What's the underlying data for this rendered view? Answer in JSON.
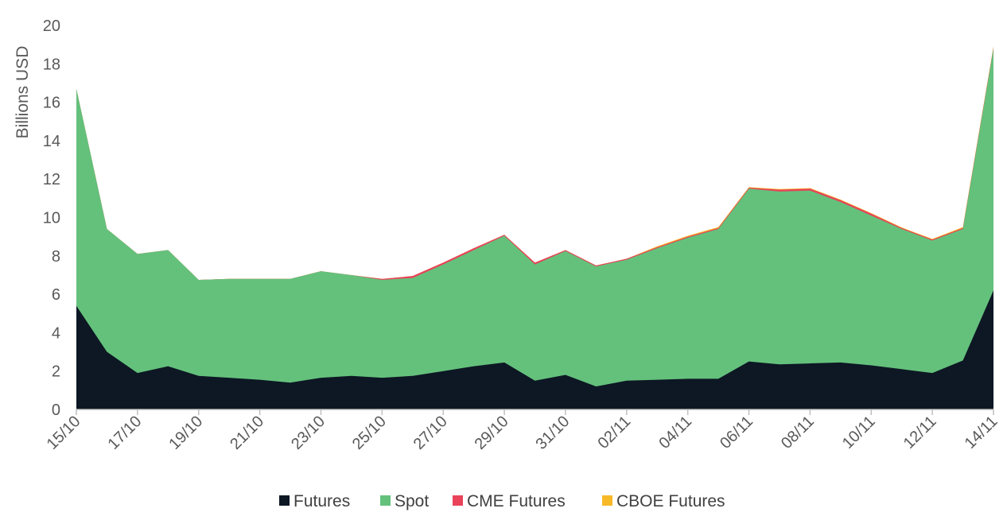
{
  "chart_data": {
    "type": "area",
    "stacked": true,
    "title": "",
    "xlabel": "",
    "ylabel": "Billions  USD",
    "ylim": [
      0,
      20
    ],
    "yticks": [
      0,
      2,
      4,
      6,
      8,
      10,
      12,
      14,
      16,
      18,
      20
    ],
    "grid": false,
    "legend_position": "bottom",
    "x": [
      "15/10",
      "16/10",
      "17/10",
      "18/10",
      "19/10",
      "20/10",
      "21/10",
      "22/10",
      "23/10",
      "24/10",
      "25/10",
      "26/10",
      "27/10",
      "28/10",
      "29/10",
      "30/10",
      "31/10",
      "01/11",
      "02/11",
      "03/11",
      "04/11",
      "05/11",
      "06/11",
      "07/11",
      "08/11",
      "09/11",
      "10/11",
      "11/11",
      "12/11",
      "13/11",
      "14/11"
    ],
    "x_tick_labels": [
      "15/10",
      "17/10",
      "19/10",
      "21/10",
      "23/10",
      "25/10",
      "27/10",
      "29/10",
      "31/10",
      "02/11",
      "04/11",
      "06/11",
      "08/11",
      "10/11",
      "12/11",
      "14/11"
    ],
    "series": [
      {
        "name": "Futures",
        "color": "#0d1824",
        "values": [
          5.4,
          3.0,
          1.9,
          2.25,
          1.75,
          1.65,
          1.55,
          1.4,
          1.65,
          1.75,
          1.65,
          1.75,
          2.0,
          2.25,
          2.45,
          1.5,
          1.8,
          1.2,
          1.5,
          1.55,
          1.6,
          1.6,
          2.5,
          2.35,
          2.4,
          2.45,
          2.3,
          2.1,
          1.9,
          2.55,
          6.2
        ]
      },
      {
        "name": "Spot",
        "color": "#64c17c",
        "values": [
          11.3,
          6.4,
          6.2,
          6.05,
          5.0,
          5.15,
          5.25,
          5.4,
          5.55,
          5.25,
          5.1,
          5.1,
          5.55,
          6.05,
          6.6,
          6.05,
          6.45,
          6.25,
          6.3,
          6.85,
          7.35,
          7.8,
          9.0,
          9.0,
          9.0,
          8.35,
          7.8,
          7.3,
          6.9,
          6.85,
          12.6
        ]
      },
      {
        "name": "CME Futures",
        "color": "#e8435a",
        "values": [
          0,
          0,
          0,
          0,
          0,
          0,
          0,
          0,
          0,
          0,
          0.05,
          0.1,
          0.1,
          0.1,
          0.05,
          0.1,
          0.05,
          0.05,
          0.05,
          0.05,
          0.05,
          0.05,
          0.05,
          0.1,
          0.1,
          0.1,
          0.1,
          0.05,
          0.05,
          0.05,
          0.05
        ]
      },
      {
        "name": "CBOE Futures",
        "color": "#f7b928",
        "values": [
          0,
          0,
          0,
          0,
          0,
          0,
          0,
          0,
          0,
          0,
          0,
          0,
          0,
          0,
          0,
          0,
          0,
          0,
          0,
          0.05,
          0.05,
          0.05,
          0.03,
          0.03,
          0.03,
          0.03,
          0.03,
          0.03,
          0.03,
          0.05,
          0.05
        ]
      }
    ]
  }
}
